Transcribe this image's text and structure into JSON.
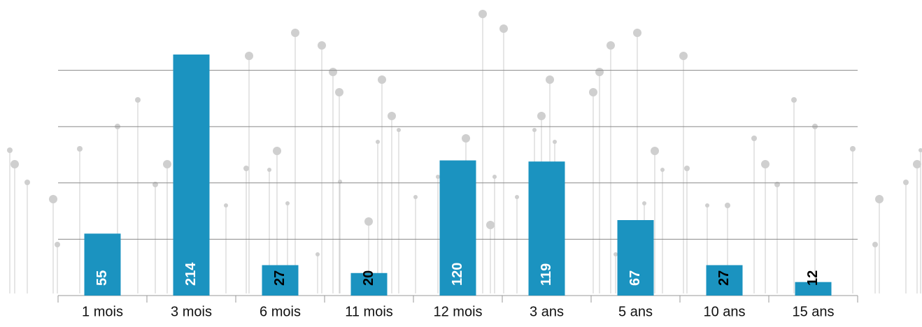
{
  "chart_data": {
    "type": "bar",
    "categories": [
      "1 mois",
      "3 mois",
      "6 mois",
      "11 mois",
      "12 mois",
      "3 ans",
      "5 ans",
      "10 ans",
      "15 ans"
    ],
    "values": [
      55,
      214,
      27,
      20,
      120,
      119,
      67,
      27,
      12
    ],
    "color": "#1b93c0",
    "ylim": [
      0,
      250
    ],
    "yticks": [
      50,
      100,
      150,
      200
    ],
    "grid": true
  }
}
